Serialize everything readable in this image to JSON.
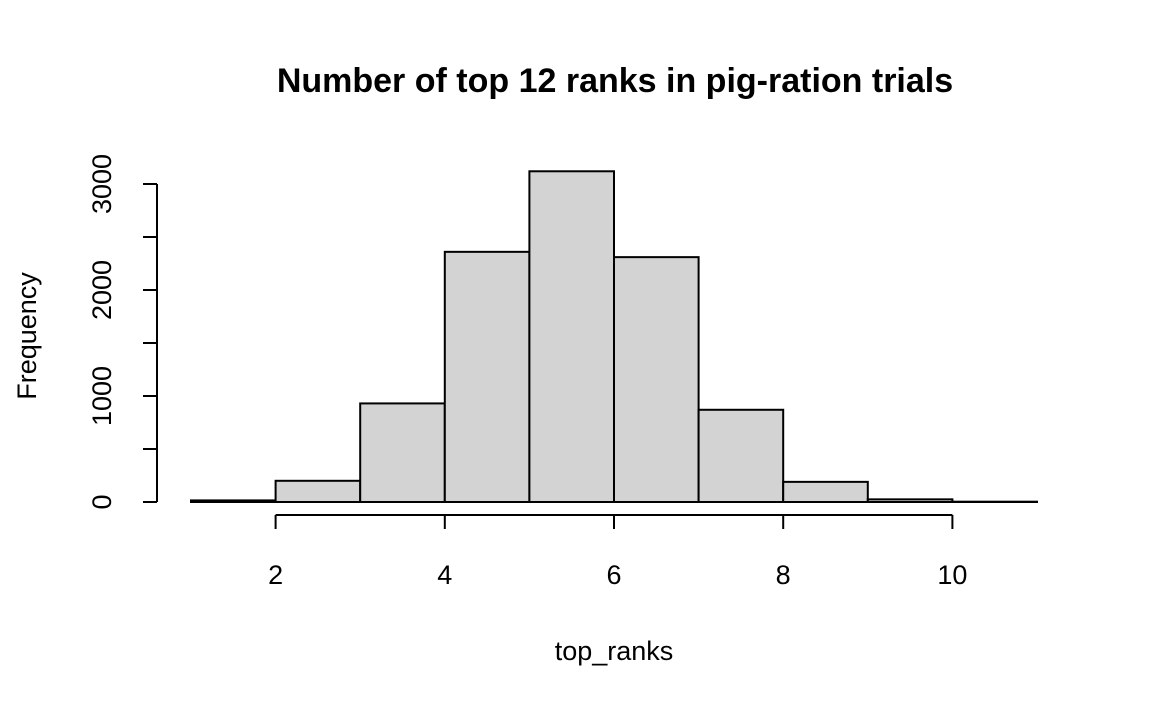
{
  "chart_data": {
    "type": "bar",
    "title": "Number of top 12 ranks in pig-ration trials",
    "xlabel": "top_ranks",
    "ylabel": "Frequency",
    "bins": [
      {
        "from": 1,
        "to": 2,
        "count": 15
      },
      {
        "from": 2,
        "to": 3,
        "count": 200
      },
      {
        "from": 3,
        "to": 4,
        "count": 930
      },
      {
        "from": 4,
        "to": 5,
        "count": 2360
      },
      {
        "from": 5,
        "to": 6,
        "count": 3120
      },
      {
        "from": 6,
        "to": 7,
        "count": 2310
      },
      {
        "from": 7,
        "to": 8,
        "count": 870
      },
      {
        "from": 8,
        "to": 9,
        "count": 190
      },
      {
        "from": 9,
        "to": 10,
        "count": 25
      },
      {
        "from": 10,
        "to": 11,
        "count": 3
      }
    ],
    "xlim": [
      1,
      11
    ],
    "ylim": [
      0,
      3000
    ],
    "x_ticks": [
      2,
      4,
      6,
      8,
      10
    ],
    "y_ticks": [
      0,
      500,
      1000,
      1500,
      2000,
      2500,
      3000
    ],
    "y_tick_labels": [
      "0",
      "",
      "1000",
      "",
      "2000",
      "",
      "3000"
    ],
    "grid": false,
    "bar_color": "#d3d3d3",
    "edge_color": "#000000"
  }
}
